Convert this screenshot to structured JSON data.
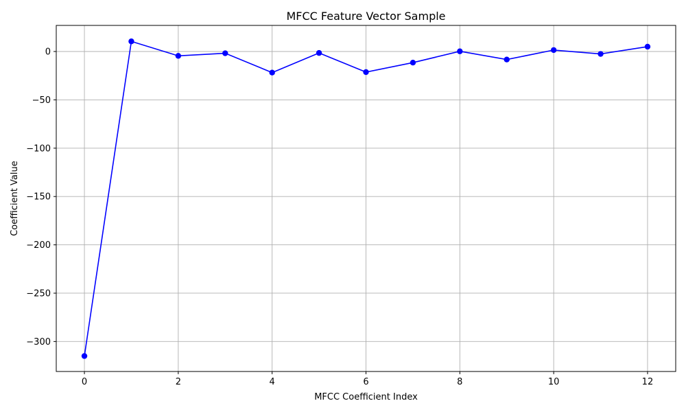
{
  "chart_data": {
    "type": "line",
    "title": "MFCC Feature Vector Sample",
    "xlabel": "MFCC Coefficient Index",
    "ylabel": "Coefficient Value",
    "x": [
      0,
      1,
      2,
      3,
      4,
      5,
      6,
      7,
      8,
      9,
      10,
      11,
      12
    ],
    "series": [
      {
        "name": "",
        "values": [
          -315,
          10.5,
          -4.5,
          -1.8,
          -21.8,
          -1.5,
          -21.3,
          -11.5,
          0.2,
          -8.3,
          1.5,
          -2.5,
          5.0
        ],
        "color": "#0000ff",
        "marker": "circle"
      }
    ],
    "xlim": [
      -0.6,
      12.6
    ],
    "ylim": [
      -331,
      27
    ],
    "xticks": [
      0,
      2,
      4,
      6,
      8,
      10,
      12
    ],
    "xtick_labels": [
      "0",
      "2",
      "4",
      "6",
      "8",
      "10",
      "12"
    ],
    "yticks": [
      0,
      -50,
      -100,
      -150,
      -200,
      -250,
      -300
    ],
    "ytick_labels": [
      "0",
      "−50",
      "−100",
      "−150",
      "−200",
      "−250",
      "−300"
    ],
    "grid": true,
    "legend": "none"
  }
}
